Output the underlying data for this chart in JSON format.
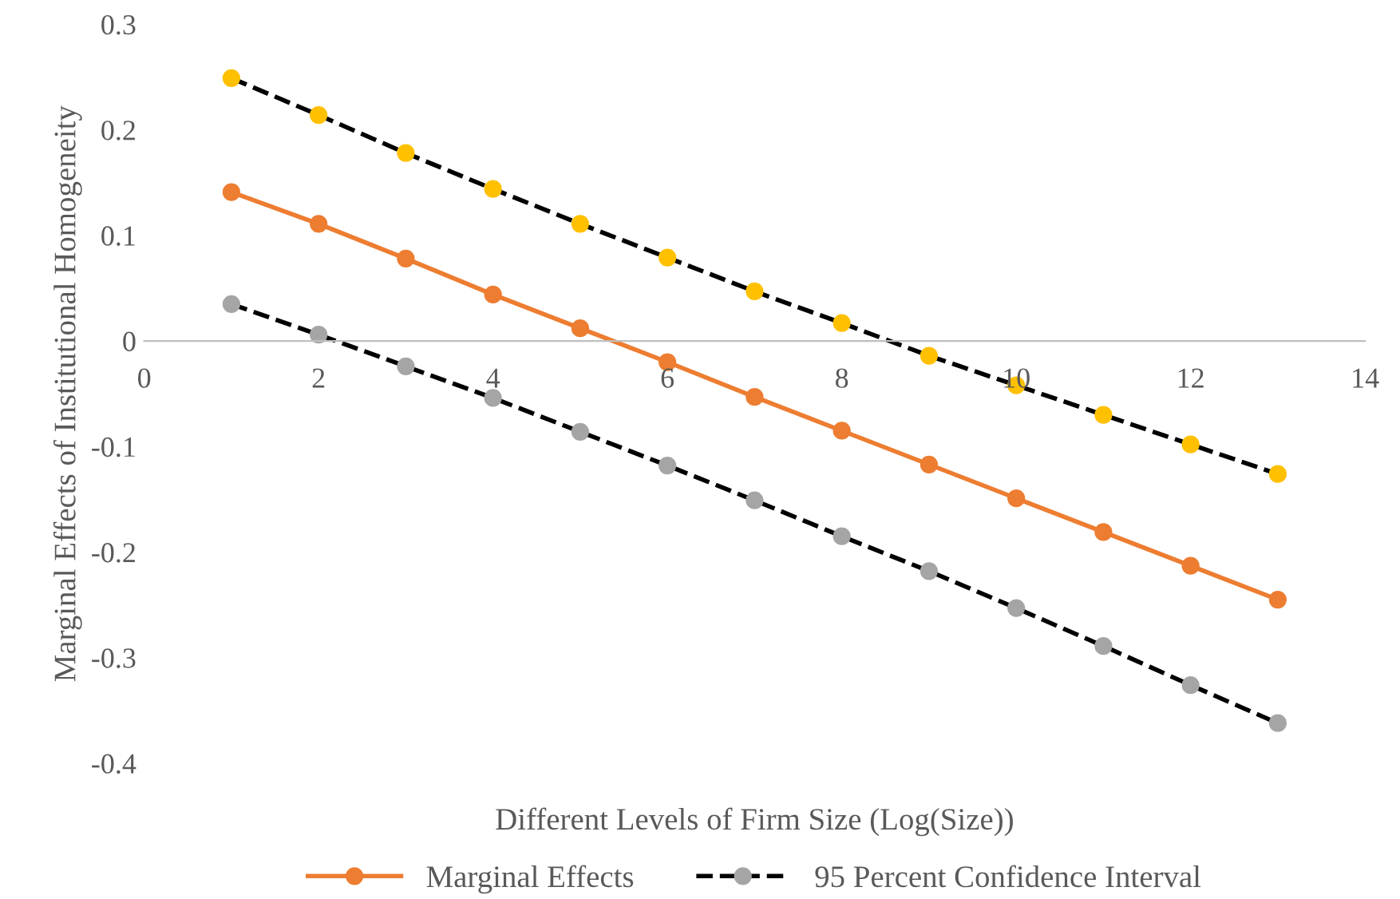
{
  "chart_data": {
    "type": "line",
    "xlabel": "Different Levels of Firm Size (Log(Size))",
    "ylabel": "Marginal Effects of Institutional Homogeneity",
    "x": [
      1,
      2,
      3,
      4,
      5,
      6,
      7,
      8,
      9,
      10,
      11,
      12,
      13
    ],
    "series": [
      {
        "name": "Marginal Effects",
        "color": "#ed7d31",
        "line_style": "solid",
        "values": [
          0.141,
          0.111,
          0.078,
          0.044,
          0.012,
          -0.02,
          -0.053,
          -0.085,
          -0.117,
          -0.149,
          -0.181,
          -0.213,
          -0.245
        ]
      },
      {
        "name": "95 Percent Confidence Interval",
        "color": "#a5a5a5",
        "line_style": "dashed",
        "values": [
          0.035,
          0.006,
          -0.024,
          -0.054,
          -0.086,
          -0.118,
          -0.151,
          -0.185,
          -0.218,
          -0.253,
          -0.289,
          -0.326,
          -0.362
        ]
      },
      {
        "color": "#ffc000",
        "line_style": "dashed",
        "values": [
          0.249,
          0.214,
          0.178,
          0.144,
          0.111,
          0.079,
          0.047,
          0.017,
          -0.014,
          -0.042,
          -0.07,
          -0.098,
          -0.126
        ]
      }
    ],
    "marker": "circle",
    "xlim": [
      0,
      14
    ],
    "xticks": [
      0,
      2,
      4,
      6,
      8,
      10,
      12,
      14
    ],
    "ylim": [
      -0.4,
      0.3
    ],
    "yticks": [
      {
        "value": -0.4,
        "label": "-0.4"
      },
      {
        "value": -0.3,
        "label": "-0.3"
      },
      {
        "value": -0.2,
        "label": "-0.2"
      },
      {
        "value": -0.1,
        "label": "-0.1"
      },
      0,
      0.1,
      0.2,
      0.3
    ],
    "grid": false,
    "legend": "bottom"
  }
}
